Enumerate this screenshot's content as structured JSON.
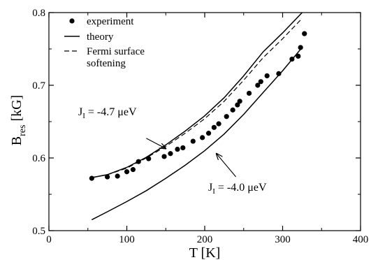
{
  "chart_data": {
    "type": "scatter",
    "xlabel_main": "T [K]",
    "ylabel_main": "B",
    "ylabel_sub": "res",
    "ylabel_unit": " [kG]",
    "xlim": [
      0,
      400
    ],
    "ylim": [
      0.5,
      0.8
    ],
    "xticks": [
      0,
      100,
      200,
      300,
      400
    ],
    "yticks": [
      0.5,
      0.6,
      0.7,
      0.8
    ],
    "xtick_labels": [
      "0",
      "100",
      "200",
      "300",
      "400"
    ],
    "ytick_labels": [
      "0.5",
      "0.6",
      "0.7",
      "0.8"
    ],
    "grid": false,
    "legend_position": "top-left",
    "legend": [
      {
        "label": "experiment",
        "style": "markers"
      },
      {
        "label": "theory",
        "style": "solid"
      },
      {
        "label": "Fermi surface",
        "style": "dashed"
      },
      {
        "label": "softening",
        "style": "none"
      }
    ],
    "series": [
      {
        "name": "experiment",
        "style": "markers",
        "x": [
          55,
          75,
          88,
          100,
          108,
          115,
          128,
          148,
          156,
          165,
          172,
          185,
          197,
          205,
          212,
          218,
          228,
          236,
          242,
          245,
          257,
          268,
          272,
          280,
          295,
          312,
          320,
          323,
          328
        ],
        "y": [
          0.572,
          0.574,
          0.575,
          0.581,
          0.584,
          0.595,
          0.599,
          0.602,
          0.606,
          0.612,
          0.614,
          0.623,
          0.628,
          0.634,
          0.642,
          0.647,
          0.657,
          0.666,
          0.673,
          0.678,
          0.689,
          0.7,
          0.705,
          0.713,
          0.716,
          0.736,
          0.74,
          0.752,
          0.771
        ]
      },
      {
        "name": "theory",
        "style": "solid",
        "x": [
          55,
          75,
          100,
          125,
          150,
          175,
          200,
          225,
          250,
          275,
          300,
          325
        ],
        "y": [
          0.573,
          0.577,
          0.587,
          0.601,
          0.618,
          0.637,
          0.658,
          0.683,
          0.713,
          0.746,
          0.772,
          0.8
        ]
      },
      {
        "name": "Fermi surface softening",
        "style": "dashed",
        "x": [
          55,
          75,
          100,
          125,
          150,
          175,
          200,
          225,
          250,
          275,
          300,
          325
        ],
        "y": [
          0.573,
          0.577,
          0.586,
          0.6,
          0.616,
          0.634,
          0.654,
          0.678,
          0.707,
          0.738,
          0.764,
          0.792
        ]
      },
      {
        "name": "theory",
        "style": "solid",
        "x": [
          55,
          75,
          100,
          125,
          150,
          175,
          200,
          225,
          250,
          275,
          300,
          325
        ],
        "y": [
          0.515,
          0.526,
          0.54,
          0.555,
          0.572,
          0.59,
          0.61,
          0.633,
          0.66,
          0.69,
          0.72,
          0.752
        ]
      }
    ],
    "annotations": [
      {
        "prefix": "J",
        "sub": "I",
        "suffix": " = -4.7 μeV",
        "arrow_from": [
          125,
          0.627
        ],
        "arrow_to": [
          150,
          0.613
        ]
      },
      {
        "prefix": "J",
        "sub": "I",
        "suffix": " = -4.0 μeV",
        "arrow_from": [
          240,
          0.574
        ],
        "arrow_to": [
          215,
          0.606
        ]
      }
    ]
  }
}
